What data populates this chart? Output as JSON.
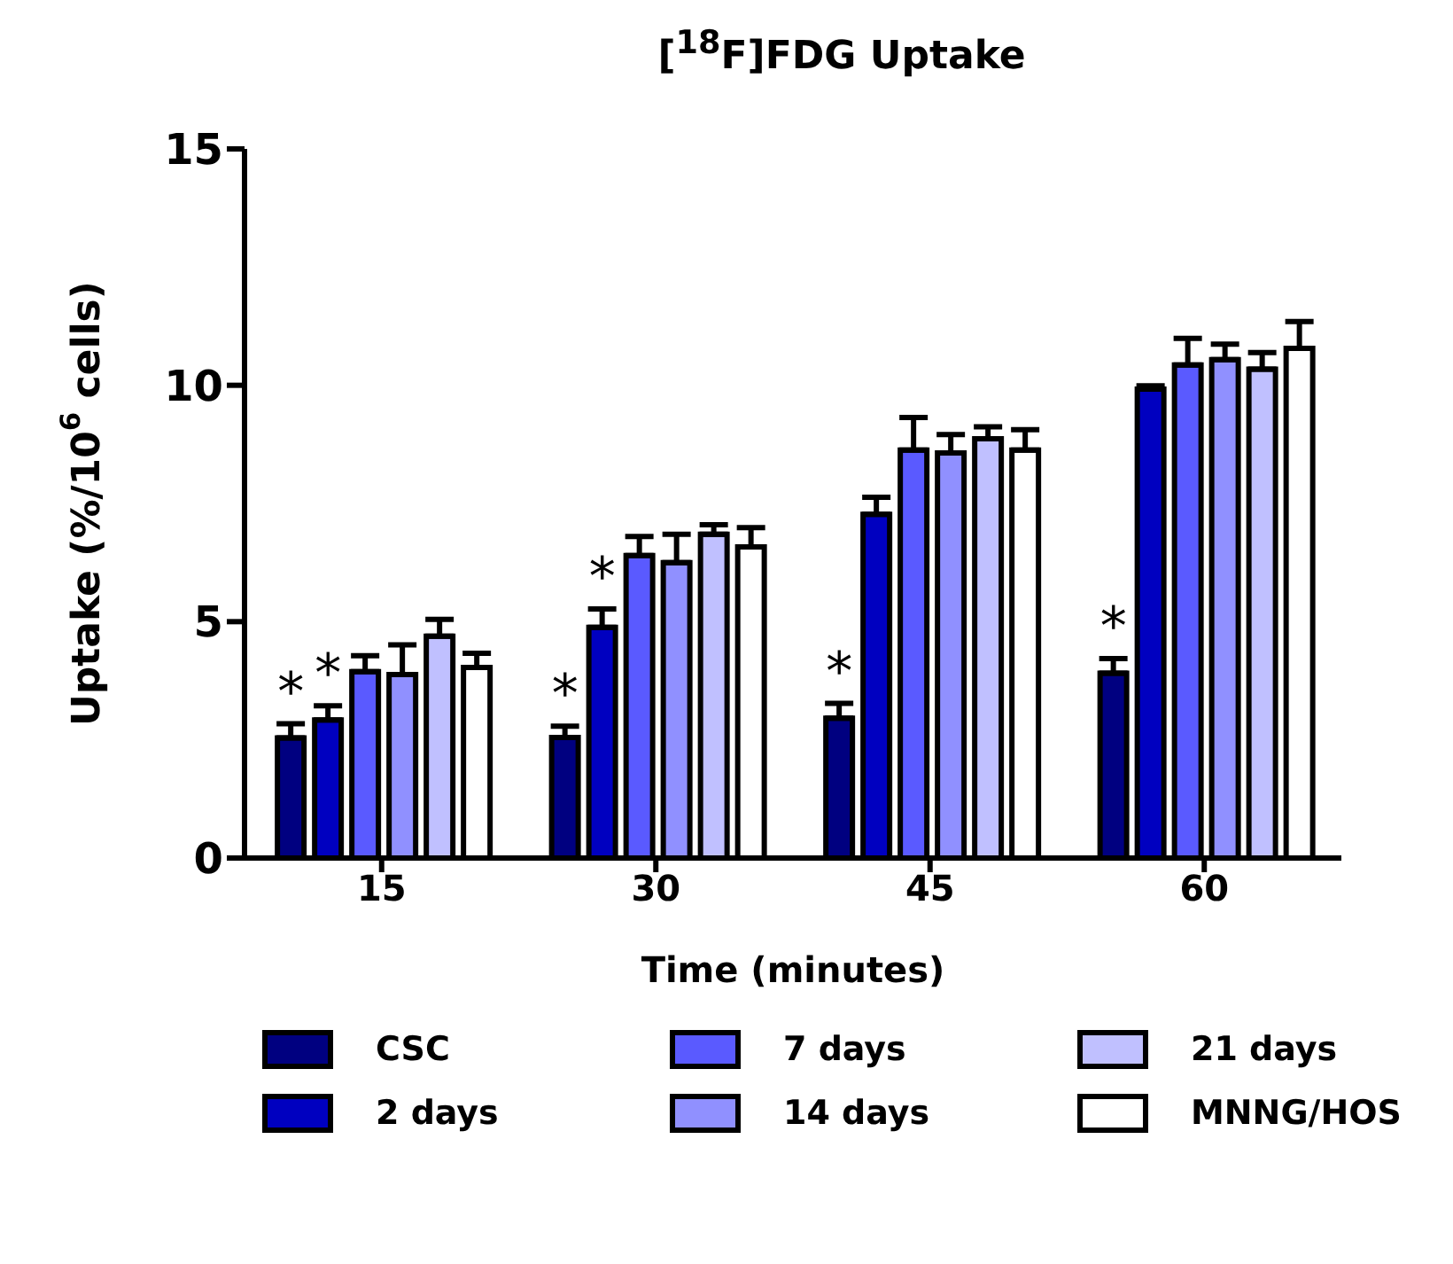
{
  "chart_data": {
    "type": "bar",
    "title": "[$^{18}$F]FDG Uptake",
    "xlabel": "Time (minutes)",
    "ylabel": "Uptake (%/10$^{6}$ cells)",
    "categories": [
      "15",
      "30",
      "45",
      "60"
    ],
    "series": [
      {
        "name": "CSC",
        "color": "#000080",
        "values": [
          2.54,
          2.55,
          2.96,
          3.91
        ],
        "errors": [
          [
            2.54,
            2.84
          ],
          [
            2.55,
            2.79
          ],
          [
            2.96,
            3.27
          ],
          [
            3.91,
            4.22
          ]
        ]
      },
      {
        "name": "2 days",
        "color": "#0000c0",
        "values": [
          2.92,
          4.88,
          7.27,
          9.92
        ],
        "errors": [
          [
            2.92,
            3.22
          ],
          [
            4.88,
            5.27
          ],
          [
            7.27,
            7.63
          ],
          [
            9.92,
            9.99
          ]
        ]
      },
      {
        "name": "7 days",
        "color": "#5a5aff",
        "values": [
          3.94,
          6.4,
          8.63,
          10.43
        ],
        "errors": [
          [
            3.94,
            4.28
          ],
          [
            6.4,
            6.8
          ],
          [
            8.63,
            9.32
          ],
          [
            10.43,
            10.99
          ]
        ]
      },
      {
        "name": "14 days",
        "color": "#9090ff",
        "values": [
          3.88,
          6.25,
          8.57,
          10.54
        ],
        "errors": [
          [
            3.88,
            4.51
          ],
          [
            6.25,
            6.85
          ],
          [
            8.57,
            8.96
          ],
          [
            10.54,
            10.87
          ]
        ]
      },
      {
        "name": "21 days",
        "color": "#c0c0ff",
        "values": [
          4.69,
          6.85,
          8.87,
          10.34
        ],
        "errors": [
          [
            4.69,
            5.05
          ],
          [
            6.85,
            7.05
          ],
          [
            8.87,
            9.12
          ],
          [
            10.34,
            10.69
          ]
        ]
      },
      {
        "name": "MNNG/HOS",
        "color": "#ffffff",
        "values": [
          4.03,
          6.58,
          8.63,
          10.78
        ],
        "errors": [
          [
            4.03,
            4.33
          ],
          [
            6.58,
            6.99
          ],
          [
            8.63,
            9.06
          ],
          [
            10.78,
            11.35
          ]
        ]
      }
    ],
    "annotations": [
      {
        "text": "*",
        "x": "15",
        "y": 2.84
      },
      {
        "text": "*",
        "x": "15",
        "y": 3.22
      },
      {
        "text": "*",
        "x": "30",
        "y": 2.79
      },
      {
        "text": "*",
        "x": "30",
        "y": 5.27
      },
      {
        "text": "*",
        "x": "45",
        "y": 3.27
      },
      {
        "text": "*",
        "x": "60",
        "y": 4.22
      }
    ],
    "ylim": [
      0,
      15
    ],
    "yticks": [
      0,
      5,
      10,
      15
    ],
    "grid": false,
    "legend": "bottom"
  }
}
